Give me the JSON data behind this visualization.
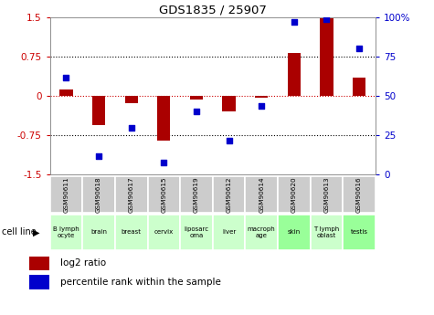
{
  "title": "GDS1835 / 25907",
  "samples": [
    "GSM90611",
    "GSM90618",
    "GSM90617",
    "GSM90615",
    "GSM90619",
    "GSM90612",
    "GSM90614",
    "GSM90620",
    "GSM90613",
    "GSM90616"
  ],
  "cell_lines": [
    "B lymph\nocyte",
    "brain",
    "breast",
    "cervix",
    "liposarc\noma",
    "liver",
    "macroph\nage",
    "skin",
    "T lymph\noblast",
    "testis"
  ],
  "cell_line_colors": [
    "#ccffcc",
    "#ccffcc",
    "#ccffcc",
    "#ccffcc",
    "#ccffcc",
    "#ccffcc",
    "#ccffcc",
    "#99ff99",
    "#ccffcc",
    "#99ff99"
  ],
  "log2_ratio": [
    0.13,
    -0.55,
    -0.13,
    -0.85,
    -0.07,
    -0.3,
    -0.03,
    0.82,
    1.48,
    0.35
  ],
  "percentile_rank": [
    62,
    12,
    30,
    8,
    40,
    22,
    44,
    97,
    99,
    80
  ],
  "ylim_left": [
    -1.5,
    1.5
  ],
  "ylim_right": [
    0,
    100
  ],
  "bar_color": "#aa0000",
  "dot_color": "#0000cc",
  "hline_color": "#cc0000",
  "bg_color": "#ffffff",
  "sample_box_color": "#cccccc",
  "legend_red_label": "log2 ratio",
  "legend_blue_label": "percentile rank within the sample",
  "cell_line_label": "cell line"
}
